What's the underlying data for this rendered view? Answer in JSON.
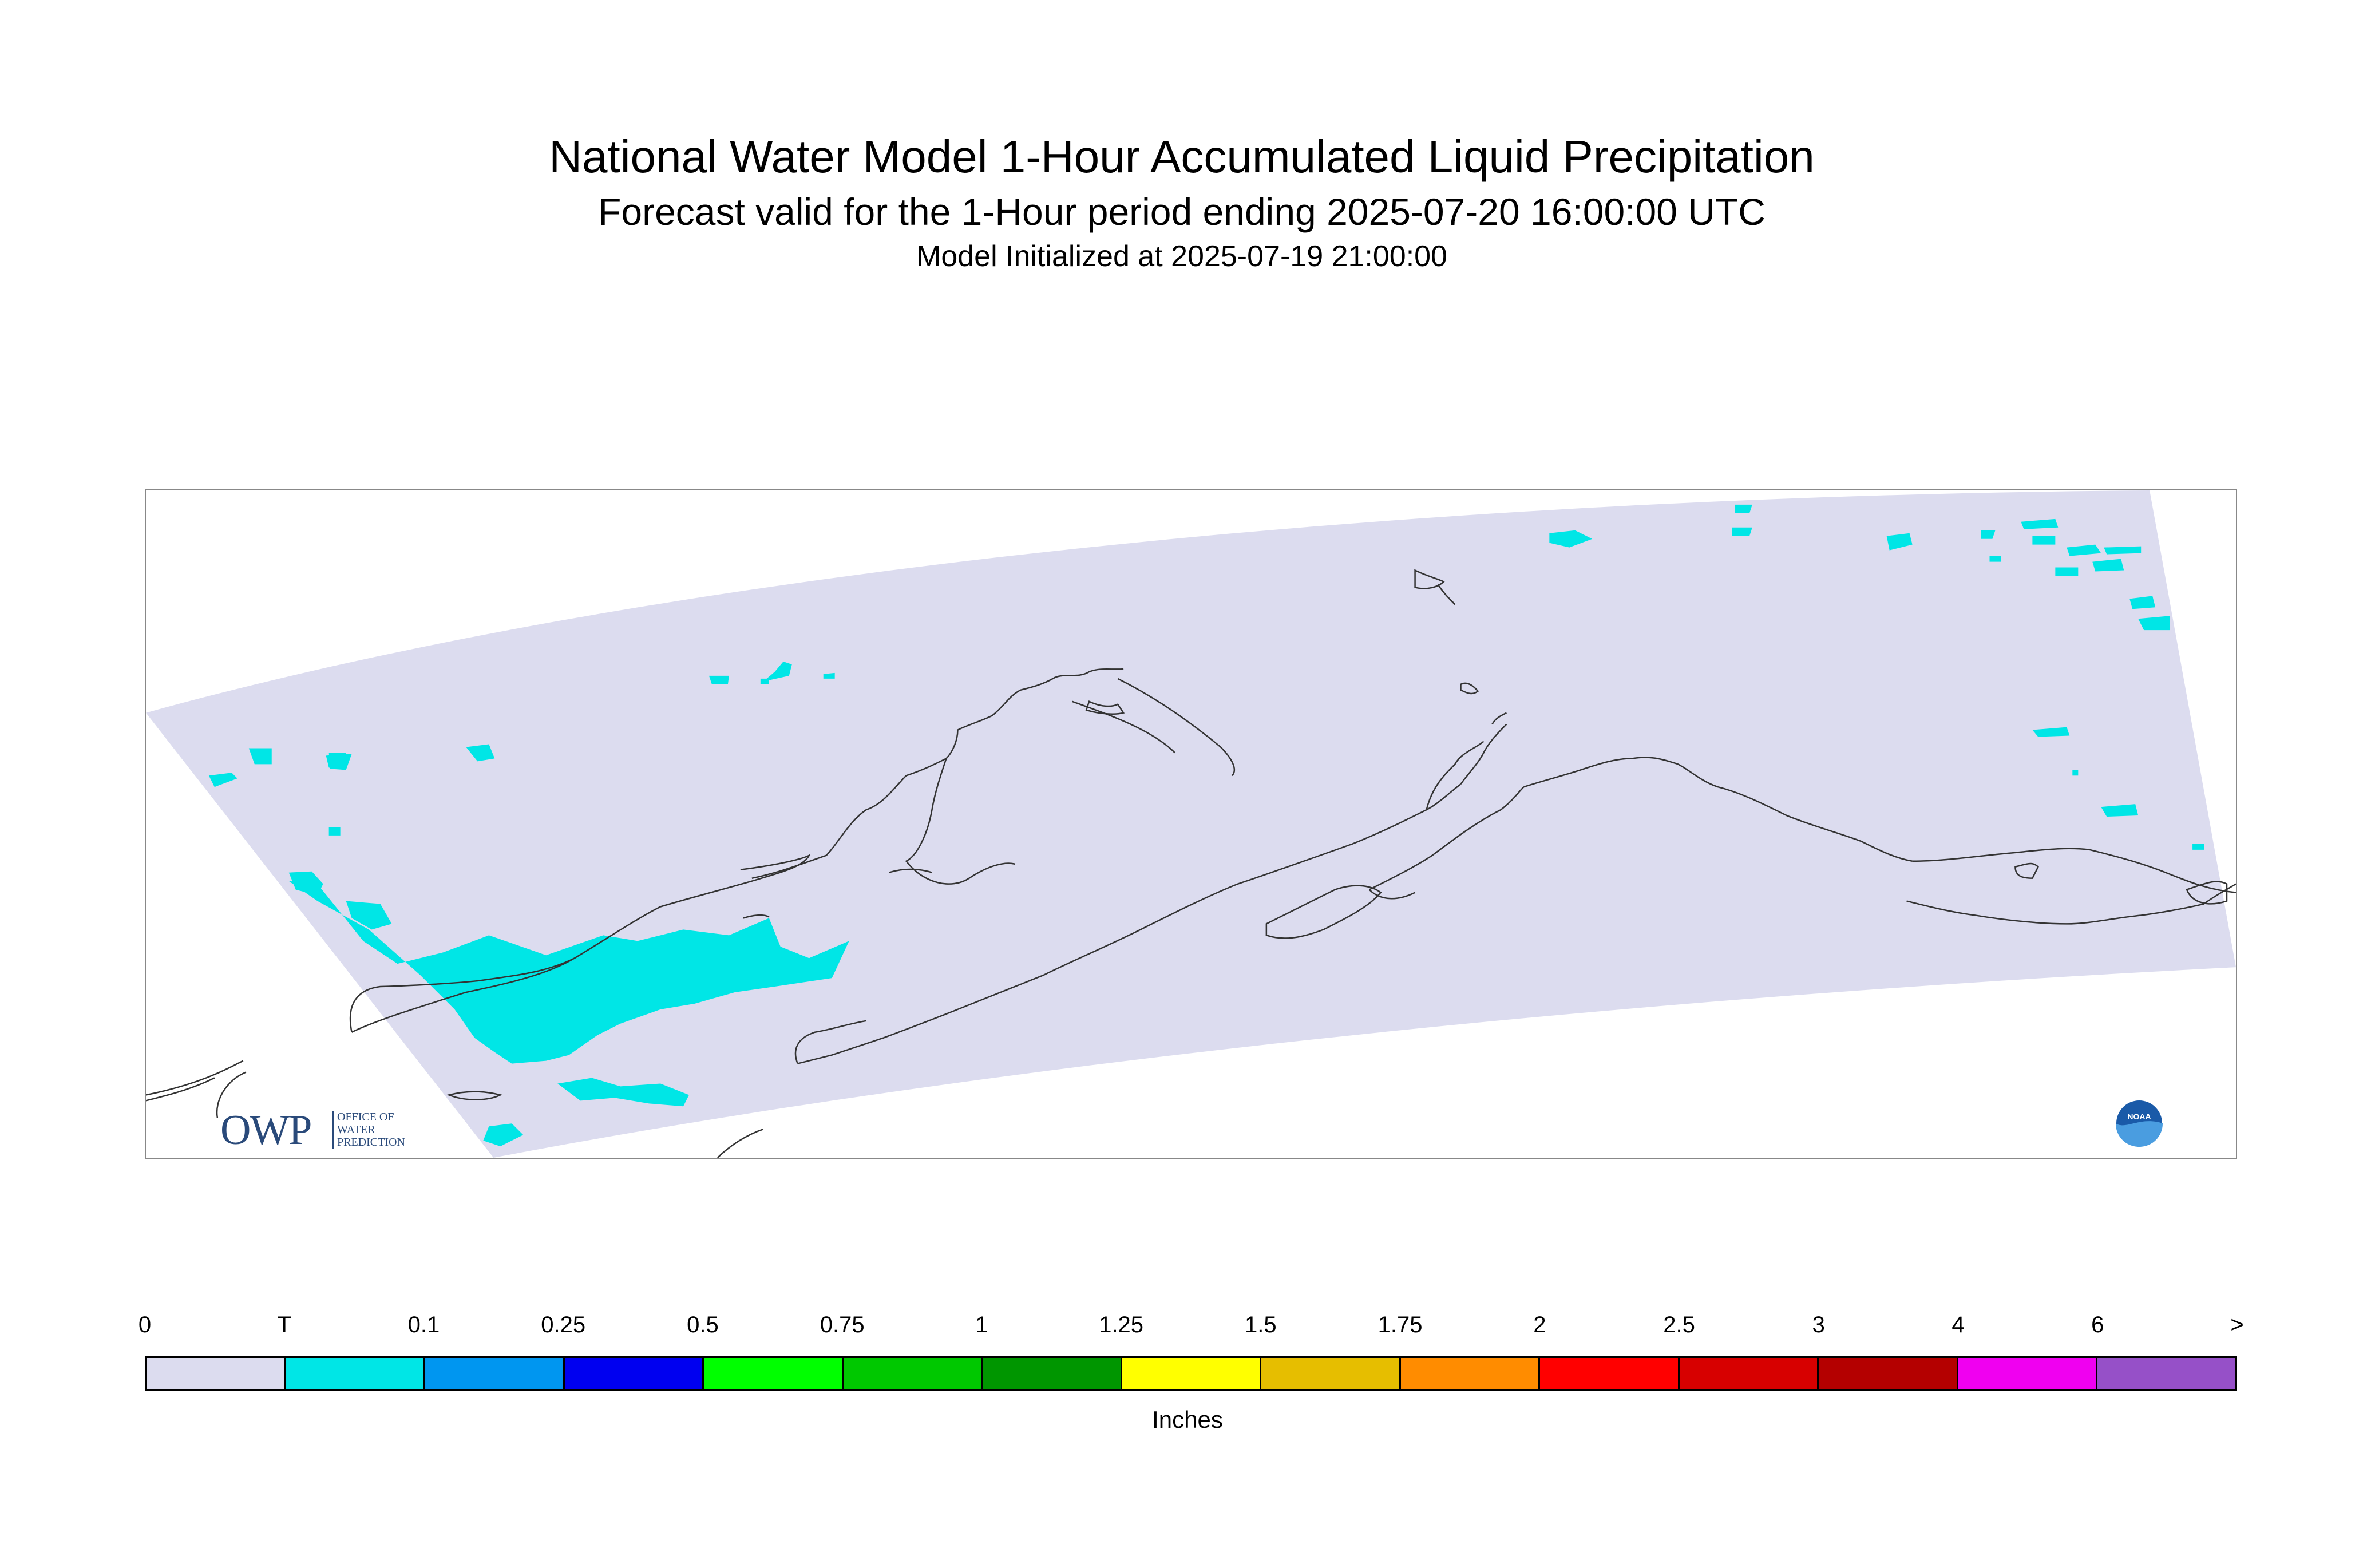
{
  "header": {
    "title": "National Water Model 1-Hour Accumulated Liquid Precipitation",
    "subtitle": "Forecast valid for the 1-Hour period ending 2025-07-20 16:00:00 UTC",
    "init": "Model Initialized at 2025-07-19 21:00:00"
  },
  "map": {
    "domain_color": "#dcdcef",
    "precip_color": "#00e6e6",
    "coast_color": "#333333",
    "owp_logo": {
      "letters": "OWP",
      "subtext": "OFFICE OF WATER PREDICTION"
    },
    "noaa_logo": {
      "text": "NOAA"
    }
  },
  "legend": {
    "units": "Inches",
    "ticks": [
      "0",
      "T",
      "0.1",
      "0.25",
      "0.5",
      "0.75",
      "1",
      "1.25",
      "1.5",
      "1.75",
      "2",
      "2.5",
      "3",
      "4",
      "6",
      ">"
    ],
    "colors": [
      "#dcdcef",
      "#00e6e6",
      "#0096f0",
      "#0000f0",
      "#00ff00",
      "#00c800",
      "#009600",
      "#ffff00",
      "#e6be00",
      "#ff8c00",
      "#ff0000",
      "#d70000",
      "#b40000",
      "#f000f0",
      "#9650c8"
    ]
  }
}
